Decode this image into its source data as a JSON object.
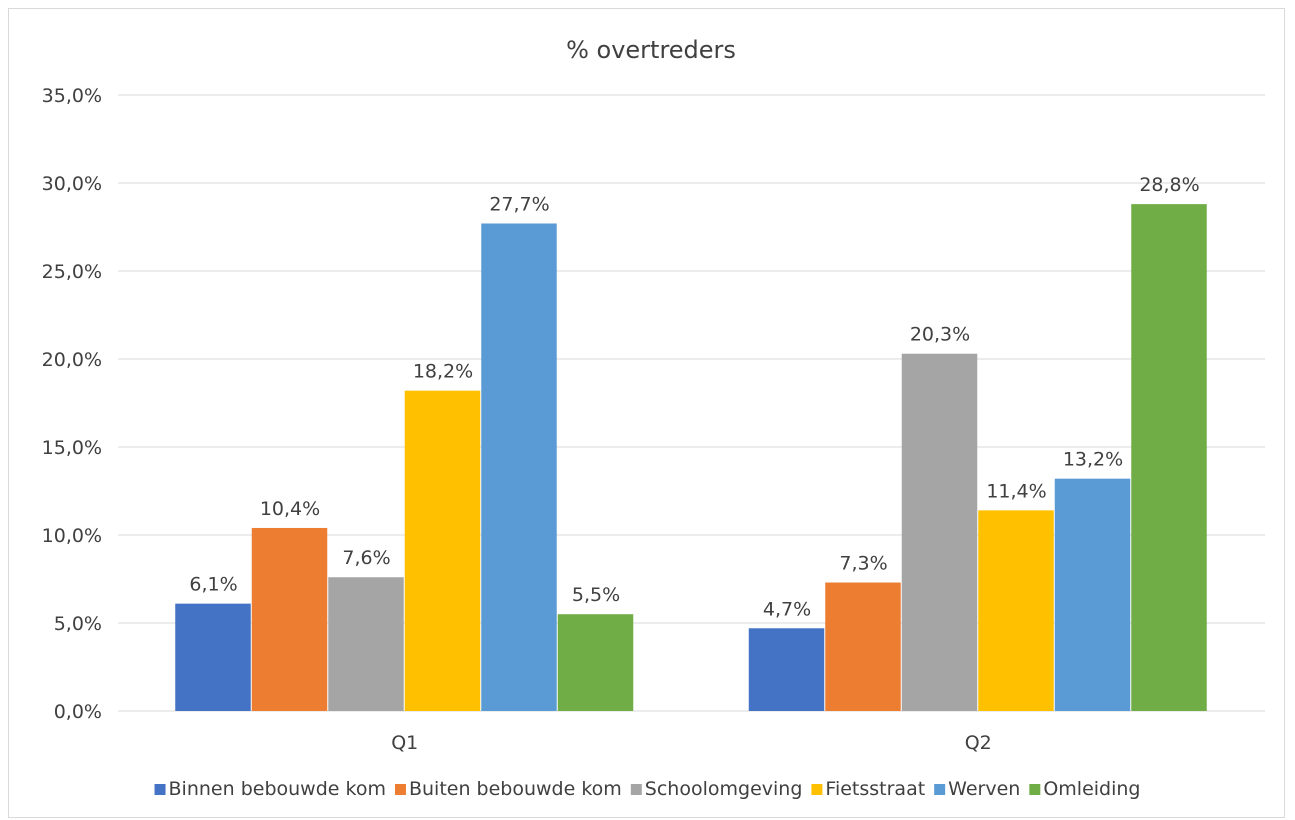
{
  "chart_data": {
    "type": "bar",
    "title": "% overtreders",
    "xlabel": "",
    "ylabel": "",
    "categories": [
      "Q1",
      "Q2"
    ],
    "series": [
      {
        "name": "Binnen bebouwde kom",
        "color": "#4472C4",
        "values": [
          6.1,
          4.7
        ],
        "labels": [
          "6,1%",
          "4,7%"
        ]
      },
      {
        "name": "Buiten bebouwde kom",
        "color": "#ED7D31",
        "values": [
          10.4,
          7.3
        ],
        "labels": [
          "10,4%",
          "7,3%"
        ]
      },
      {
        "name": "Schoolomgeving",
        "color": "#A5A5A5",
        "values": [
          7.6,
          20.3
        ],
        "labels": [
          "7,6%",
          "20,3%"
        ]
      },
      {
        "name": "Fietsstraat",
        "color": "#FFC000",
        "values": [
          18.2,
          11.4
        ],
        "labels": [
          "18,2%",
          "11,4%"
        ]
      },
      {
        "name": "Werven",
        "color": "#5B9BD5",
        "values": [
          27.7,
          13.2
        ],
        "labels": [
          "27,7%",
          "13,2%"
        ]
      },
      {
        "name": "Omleiding",
        "color": "#70AD47",
        "values": [
          5.5,
          28.8
        ],
        "labels": [
          "5,5%",
          "28,8%"
        ]
      }
    ],
    "ylim": [
      0,
      35
    ],
    "yticks": [
      0,
      5,
      10,
      15,
      20,
      25,
      30,
      35
    ],
    "ytick_labels": [
      "0,0%",
      "5,0%",
      "10,0%",
      "15,0%",
      "20,0%",
      "25,0%",
      "30,0%",
      "35,0%"
    ],
    "grid": true,
    "legend_position": "bottom"
  }
}
